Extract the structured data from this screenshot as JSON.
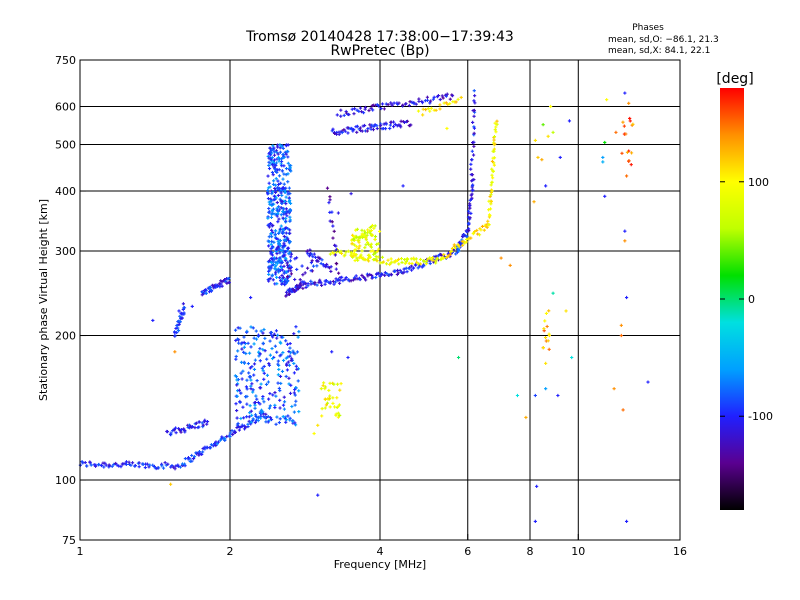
{
  "chart_data": {
    "type": "scatter",
    "title": "Tromsø 20140428 17:38:00−17:39:43",
    "subtitle": "RwPretec (Bp)",
    "xlabel": "Frequency [MHz]",
    "ylabel": "Stationary phase Virtual Height [km]",
    "xscale": "log",
    "yscale": "log",
    "xlim": [
      1,
      16
    ],
    "ylim": [
      75,
      750
    ],
    "xticks": [
      1,
      2,
      4,
      6,
      8,
      10,
      16
    ],
    "yticks": [
      75,
      100,
      200,
      300,
      400,
      500,
      600,
      750
    ],
    "grid": true,
    "legend": {
      "title": "Phases",
      "lines": [
        "mean, sd,O: −86.1, 21.3",
        "mean, sd,X:  84.1, 22.1"
      ],
      "placement": "top-right"
    },
    "colorbar": {
      "label": "[deg]",
      "range": [
        -180,
        180
      ],
      "ticks": [
        -100,
        0,
        100
      ],
      "colors": [
        "#000000",
        "#5a0090",
        "#2020ff",
        "#00a0ff",
        "#00e0e0",
        "#00e000",
        "#c0ff00",
        "#ffff00",
        "#ff9000",
        "#ff0000"
      ]
    },
    "trace_segments": [
      {
        "x0": 1.0,
        "x1": 1.6,
        "y0": 108,
        "y1": 107,
        "n": 70,
        "phase": -100
      },
      {
        "x0": 1.6,
        "x1": 2.35,
        "y0": 108,
        "y1": 138,
        "n": 80,
        "phase": -95
      },
      {
        "x0": 1.5,
        "x1": 1.8,
        "y0": 125,
        "y1": 132,
        "n": 40,
        "phase": -100
      },
      {
        "x0": 1.55,
        "x1": 1.62,
        "y0": 200,
        "y1": 230,
        "n": 30,
        "phase": -100
      },
      {
        "x0": 1.75,
        "x1": 2.0,
        "y0": 245,
        "y1": 262,
        "n": 40,
        "phase": -100
      },
      {
        "x0": 2.6,
        "x1": 2.8,
        "y0": 245,
        "y1": 255,
        "n": 40,
        "phase": -110
      },
      {
        "x0": 2.8,
        "x1": 4.4,
        "y0": 255,
        "y1": 270,
        "n": 80,
        "phase": -105
      },
      {
        "x0": 4.4,
        "x1": 5.7,
        "y0": 272,
        "y1": 300,
        "n": 50,
        "phase": -105
      },
      {
        "x0": 5.7,
        "x1": 6.0,
        "y0": 300,
        "y1": 330,
        "n": 30,
        "phase": -95
      },
      {
        "x0": 6.0,
        "x1": 6.15,
        "y0": 330,
        "y1": 420,
        "n": 30,
        "phase": -110
      },
      {
        "x0": 3.2,
        "x1": 4.2,
        "y0": 300,
        "y1": 285,
        "n": 40,
        "phase": 90
      },
      {
        "x0": 4.2,
        "x1": 5.3,
        "y0": 285,
        "y1": 287,
        "n": 40,
        "phase": 90
      },
      {
        "x0": 5.3,
        "x1": 6.6,
        "y0": 290,
        "y1": 340,
        "n": 40,
        "phase": 110
      },
      {
        "x0": 6.6,
        "x1": 6.85,
        "y0": 340,
        "y1": 560,
        "n": 45,
        "phase": 100
      },
      {
        "x0": 3.5,
        "x1": 3.9,
        "y0": 315,
        "y1": 335,
        "n": 30,
        "phase": 80
      },
      {
        "x0": 3.2,
        "x1": 4.6,
        "y0": 530,
        "y1": 555,
        "n": 70,
        "phase": -110
      },
      {
        "x0": 3.3,
        "x1": 5.6,
        "y0": 580,
        "y1": 630,
        "n": 70,
        "phase": -115
      },
      {
        "x0": 4.8,
        "x1": 5.8,
        "y0": 580,
        "y1": 620,
        "n": 20,
        "phase": 110
      },
      {
        "x0": 6.1,
        "x1": 6.2,
        "y0": 420,
        "y1": 640,
        "n": 25,
        "phase": -105
      },
      {
        "x0": 2.85,
        "x1": 3.2,
        "y0": 300,
        "y1": 275,
        "n": 25,
        "phase": -110
      },
      {
        "x0": 3.15,
        "x1": 3.3,
        "y0": 400,
        "y1": 260,
        "n": 20,
        "phase": -120
      }
    ],
    "clusters": [
      {
        "x_range": [
          2.38,
          2.65
        ],
        "y_range": [
          255,
          500
        ],
        "n": 420,
        "phase": -85
      },
      {
        "x_range": [
          2.05,
          2.75
        ],
        "y_range": [
          130,
          210
        ],
        "n": 260,
        "phase": -85
      },
      {
        "x_range": [
          3.05,
          3.35
        ],
        "y_range": [
          135,
          160
        ],
        "n": 35,
        "phase": 90
      },
      {
        "x_range": [
          3.5,
          4.0
        ],
        "y_range": [
          285,
          335
        ],
        "n": 60,
        "phase": 85
      },
      {
        "x_range": [
          2.6,
          3.0
        ],
        "y_range": [
          260,
          300
        ],
        "n": 25,
        "phase": -110
      },
      {
        "x_range": [
          8.5,
          8.75
        ],
        "y_range": [
          170,
          230
        ],
        "n": 12,
        "phase": 130
      },
      {
        "x_range": [
          12.2,
          12.9
        ],
        "y_range": [
          450,
          630
        ],
        "n": 16,
        "phase": 150
      }
    ],
    "scatter_points": [
      [
        1.52,
        98,
        120
      ],
      [
        1.55,
        185,
        140
      ],
      [
        1.58,
        225,
        -100
      ],
      [
        1.4,
        215,
        -100
      ],
      [
        1.68,
        230,
        -100
      ],
      [
        2.2,
        240,
        -100
      ],
      [
        3.0,
        93,
        -100
      ],
      [
        3.2,
        185,
        -100
      ],
      [
        3.45,
        180,
        -100
      ],
      [
        3.05,
        155,
        80
      ],
      [
        2.95,
        125,
        100
      ],
      [
        3.0,
        130,
        110
      ],
      [
        3.3,
        360,
        -110
      ],
      [
        3.5,
        395,
        -110
      ],
      [
        4.45,
        410,
        -100
      ],
      [
        5.75,
        180,
        0
      ],
      [
        5.45,
        540,
        100
      ],
      [
        7.0,
        290,
        140
      ],
      [
        7.3,
        280,
        140
      ],
      [
        7.55,
        150,
        -20
      ],
      [
        7.85,
        135,
        130
      ],
      [
        8.15,
        380,
        130
      ],
      [
        8.2,
        510,
        110
      ],
      [
        8.3,
        470,
        120
      ],
      [
        8.5,
        550,
        40
      ],
      [
        8.7,
        520,
        110
      ],
      [
        8.8,
        600,
        100
      ],
      [
        8.9,
        530,
        60
      ],
      [
        8.9,
        245,
        -10
      ],
      [
        8.6,
        155,
        -60
      ],
      [
        8.2,
        150,
        -90
      ],
      [
        8.25,
        97,
        -100
      ],
      [
        8.2,
        82,
        -100
      ],
      [
        8.6,
        410,
        -100
      ],
      [
        8.45,
        465,
        130
      ],
      [
        9.1,
        150,
        -100
      ],
      [
        9.2,
        470,
        -100
      ],
      [
        9.6,
        560,
        -100
      ],
      [
        9.7,
        180,
        -20
      ],
      [
        11.2,
        470,
        -60
      ],
      [
        11.2,
        460,
        -50
      ],
      [
        11.3,
        505,
        20
      ],
      [
        11.4,
        620,
        100
      ],
      [
        12.4,
        640,
        -100
      ],
      [
        12.4,
        330,
        -100
      ],
      [
        12.4,
        315,
        140
      ],
      [
        12.5,
        430,
        150
      ],
      [
        12.5,
        240,
        -100
      ],
      [
        12.5,
        82,
        -100
      ],
      [
        12.3,
        140,
        150
      ],
      [
        12.2,
        210,
        140
      ],
      [
        12.2,
        200,
        150
      ],
      [
        11.8,
        155,
        140
      ],
      [
        11.9,
        530,
        150
      ],
      [
        13.8,
        160,
        -100
      ],
      [
        11.3,
        390,
        -100
      ],
      [
        9.45,
        225,
        110
      ],
      [
        8.6,
        175,
        110
      ],
      [
        8.7,
        195,
        120
      ],
      [
        8.75,
        200,
        110
      ]
    ]
  }
}
